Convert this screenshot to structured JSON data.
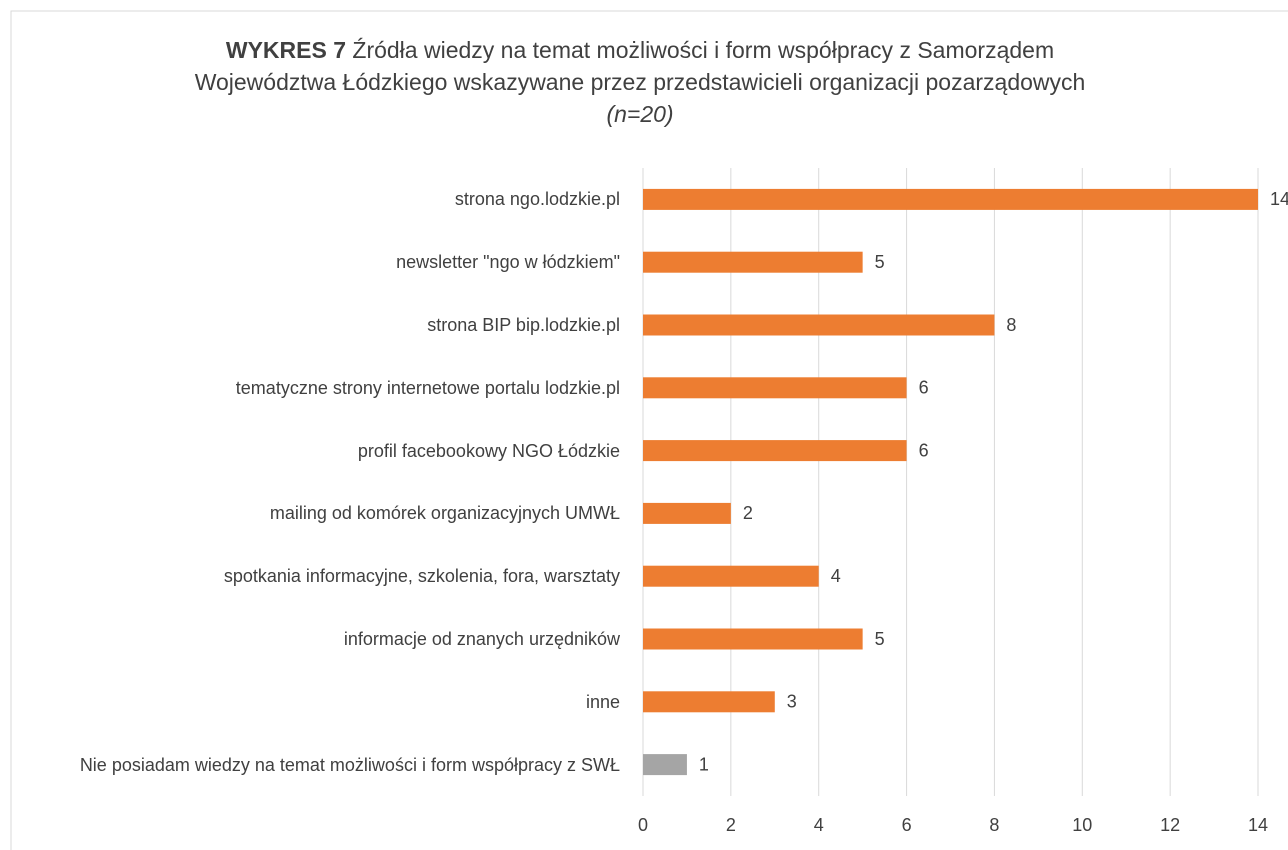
{
  "chart_data": {
    "type": "barh",
    "title_label": "WYKRES 7",
    "title": "Źródła wiedzy na temat możliwości i form współpracy z Samorządem Województwa Łódzkiego wskazywane przez przedstawicieli organizacji pozarządowych",
    "title_note": "(n=20)",
    "categories": [
      "strona ngo.lodzkie.pl",
      "newsletter \"ngo w łódzkiem\"",
      "strona BIP bip.lodzkie.pl",
      "tematyczne strony internetowe portalu lodzkie.pl",
      "profil facebookowy NGO Łódzkie",
      "mailing od komórek organizacyjnych UMWŁ",
      "spotkania informacyjne, szkolenia, fora, warsztaty",
      "informacje od znanych urzędników",
      "inne",
      "Nie posiadam wiedzy na temat możliwości i form współpracy z SWŁ"
    ],
    "values": [
      14,
      5,
      8,
      6,
      6,
      2,
      4,
      5,
      3,
      1
    ],
    "colors": [
      "#ed7d31",
      "#ed7d31",
      "#ed7d31",
      "#ed7d31",
      "#ed7d31",
      "#ed7d31",
      "#ed7d31",
      "#ed7d31",
      "#ed7d31",
      "#a5a5a5"
    ],
    "xlim": [
      0,
      14
    ],
    "xticks": [
      0,
      2,
      4,
      6,
      8,
      10,
      12,
      14
    ],
    "grid": true
  }
}
